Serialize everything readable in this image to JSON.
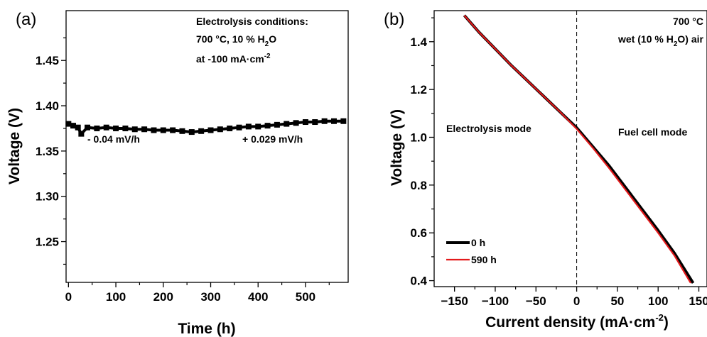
{
  "chart_data": [
    {
      "panel_label": "(a)",
      "type": "scatter",
      "xlabel": "Time (h)",
      "ylabel": "Voltage (V)",
      "xlim": [
        -5,
        590
      ],
      "ylim": [
        1.205,
        1.505
      ],
      "x_ticks": [
        0,
        100,
        200,
        300,
        400,
        500
      ],
      "y_ticks": [
        1.25,
        1.3,
        1.35,
        1.4,
        1.45
      ],
      "y_ticks_labels": [
        "1.25",
        "1.30",
        "1.35",
        "1.40",
        "1.45"
      ],
      "marker_color": "#000000",
      "series": [
        {
          "x": [
            0,
            10,
            20,
            27,
            40,
            60,
            80,
            100,
            120,
            140,
            160,
            180,
            200,
            220,
            240,
            260,
            280,
            300,
            320,
            340,
            360,
            380,
            400,
            420,
            440,
            460,
            480,
            500,
            520,
            540,
            560,
            580
          ],
          "y": [
            1.38,
            1.378,
            1.376,
            1.369,
            1.376,
            1.375,
            1.376,
            1.375,
            1.375,
            1.374,
            1.374,
            1.373,
            1.373,
            1.373,
            1.372,
            1.371,
            1.372,
            1.373,
            1.374,
            1.375,
            1.376,
            1.377,
            1.377,
            1.378,
            1.379,
            1.38,
            1.381,
            1.382,
            1.382,
            1.383,
            1.383,
            1.383
          ]
        }
      ],
      "annotations": {
        "conditions_line1": "Electrolysis conditions:",
        "conditions_line2": "700 °C, 10 % H",
        "conditions_line2_sub": "2",
        "conditions_line2_tail": "O",
        "conditions_line3": "at -100 mA·cm",
        "conditions_line3_sup": "-2",
        "rate1": "- 0.04 mV/h",
        "rate2": "+ 0.029 mV/h"
      }
    },
    {
      "panel_label": "(b)",
      "type": "line",
      "xlabel_main": "Current density (mA·cm",
      "xlabel_sup": "-2",
      "xlabel_tail": ")",
      "ylabel": "Voltage (V)",
      "xlim": [
        -175,
        160
      ],
      "ylim": [
        0.375,
        1.53
      ],
      "x_ticks": [
        -150,
        -100,
        -50,
        0,
        50,
        100,
        150
      ],
      "x_ticks_labels": [
        "−150",
        "−100",
        "−50",
        "0",
        "50",
        "100",
        "150"
      ],
      "y_ticks": [
        0.4,
        0.6,
        0.8,
        1.0,
        1.2,
        1.4
      ],
      "y_ticks_labels": [
        "0.4",
        "0.6",
        "0.8",
        "1.0",
        "1.2",
        "1.4"
      ],
      "series": [
        {
          "name": "0 h",
          "color": "#000000",
          "x": [
            -138,
            -120,
            -100,
            -80,
            -60,
            -40,
            -20,
            0,
            20,
            40,
            60,
            80,
            100,
            120,
            143
          ],
          "y": [
            1.51,
            1.44,
            1.37,
            1.3,
            1.235,
            1.17,
            1.105,
            1.04,
            0.96,
            0.88,
            0.79,
            0.7,
            0.61,
            0.515,
            0.39
          ]
        },
        {
          "name": "590 h",
          "color": "#e31a1c",
          "x": [
            -138,
            -120,
            -100,
            -80,
            -60,
            -40,
            -20,
            0,
            20,
            40,
            60,
            80,
            100,
            120,
            140
          ],
          "y": [
            1.51,
            1.44,
            1.37,
            1.3,
            1.235,
            1.17,
            1.105,
            1.035,
            0.955,
            0.87,
            0.78,
            0.69,
            0.6,
            0.505,
            0.39
          ]
        }
      ],
      "annotations": {
        "temp": "700 °C",
        "atm_pre": "wet (10 % H",
        "atm_sub": "2",
        "atm_post": "O) air",
        "mode_left": "Electrolysis mode",
        "mode_right": "Fuel cell mode"
      }
    }
  ]
}
